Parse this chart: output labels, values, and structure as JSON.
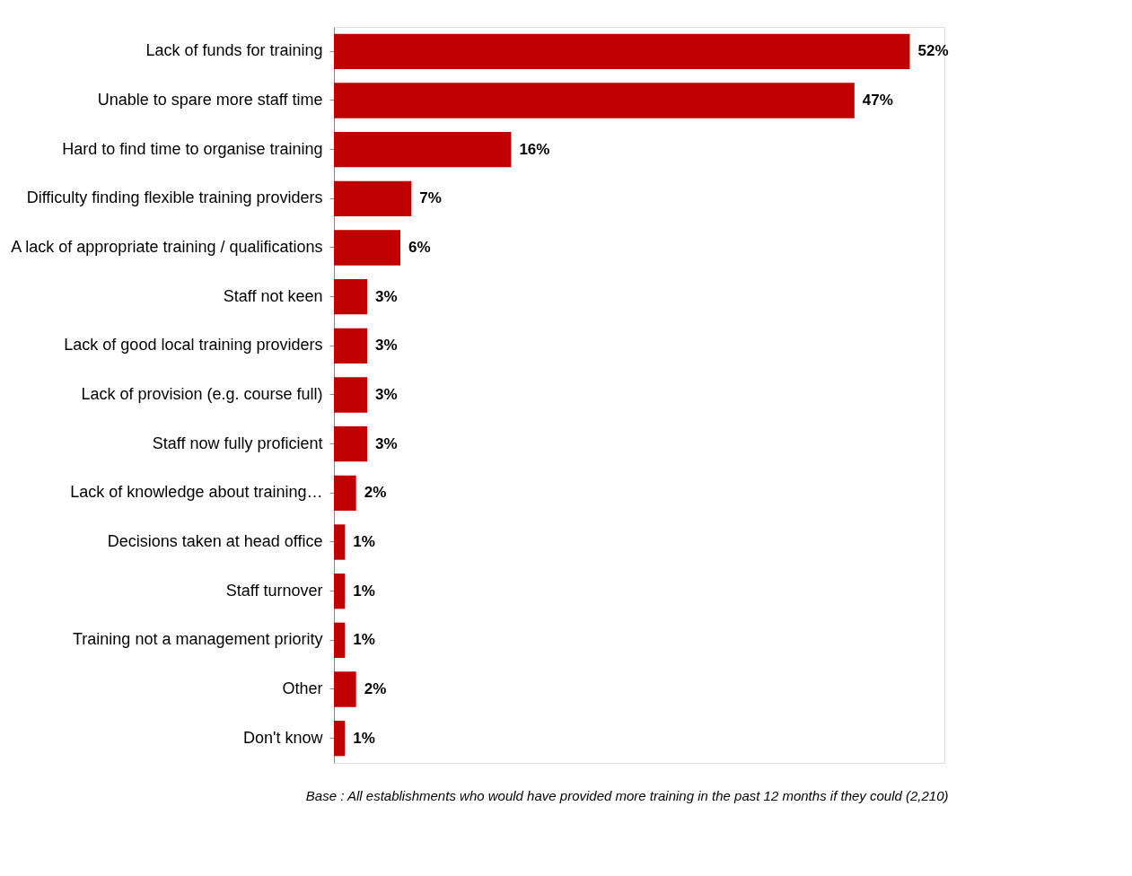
{
  "chart_data": {
    "type": "bar",
    "orientation": "horizontal",
    "value_labels": [
      "52%",
      "47%",
      "16%",
      "7%",
      "6%",
      "3%",
      "3%",
      "3%",
      "3%",
      "2%",
      "1%",
      "1%",
      "1%",
      "2%",
      "1%"
    ],
    "categories": [
      "Lack of funds for training",
      "Unable to spare more staff time",
      "Hard to find time to organise training",
      "Difficulty finding flexible training providers",
      "A lack of appropriate training / qualifications",
      "Staff not keen",
      "Lack of good local training providers",
      "Lack of provision (e.g. course full)",
      "Staff now fully proficient",
      "Lack of knowledge about training…",
      "Decisions taken at head office",
      "Staff turnover",
      "Training not a management priority",
      "Other",
      "Don't know"
    ],
    "values": [
      52,
      47,
      16,
      7,
      6,
      3,
      3,
      3,
      3,
      2,
      1,
      1,
      1,
      2,
      1
    ],
    "color": "#c00000",
    "annotations": [
      "Base : All establishments who would have provided more training in the past 12 months if they could (2,210)"
    ]
  }
}
